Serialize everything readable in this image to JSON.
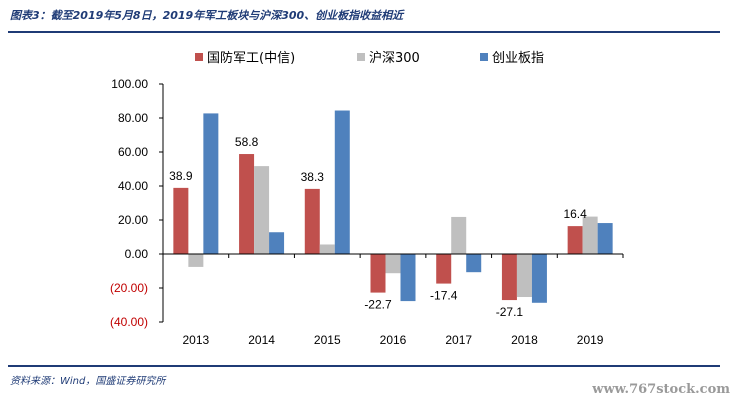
{
  "caption": "图表3：截至2019年5月8日，2019年军工板块与沪深300、创业板指收益相近",
  "source": "资料来源：Wind，国盛证券研究所",
  "watermark": "www.767stock.com",
  "colors": {
    "series": [
      "#c0504d",
      "#bfbfbf",
      "#4f81bd"
    ],
    "negative_tick": "#c00000",
    "axis": "#000000"
  },
  "chart_data": {
    "type": "bar",
    "categories": [
      "2013",
      "2014",
      "2015",
      "2016",
      "2017",
      "2018",
      "2019"
    ],
    "series": [
      {
        "name": "国防军工(中信)",
        "values": [
          38.9,
          58.8,
          38.3,
          -22.7,
          -17.4,
          -27.1,
          16.4
        ]
      },
      {
        "name": "沪深300",
        "values": [
          -7.6,
          51.7,
          5.6,
          -11.3,
          21.8,
          -25.3,
          22.0
        ]
      },
      {
        "name": "创业板指",
        "values": [
          82.7,
          12.8,
          84.4,
          -27.7,
          -10.7,
          -28.7,
          18.2
        ]
      }
    ],
    "data_labels": [
      "38.9",
      "58.8",
      "38.3",
      "-22.7",
      "-17.4",
      "-27.1",
      "16.4"
    ],
    "yticks": [
      "100.00",
      "80.00",
      "60.00",
      "40.00",
      "20.00",
      "0.00",
      "(20.00)",
      "(40.00)"
    ],
    "ylim": [
      -40,
      100
    ],
    "legend_position": "top",
    "grid": false
  }
}
